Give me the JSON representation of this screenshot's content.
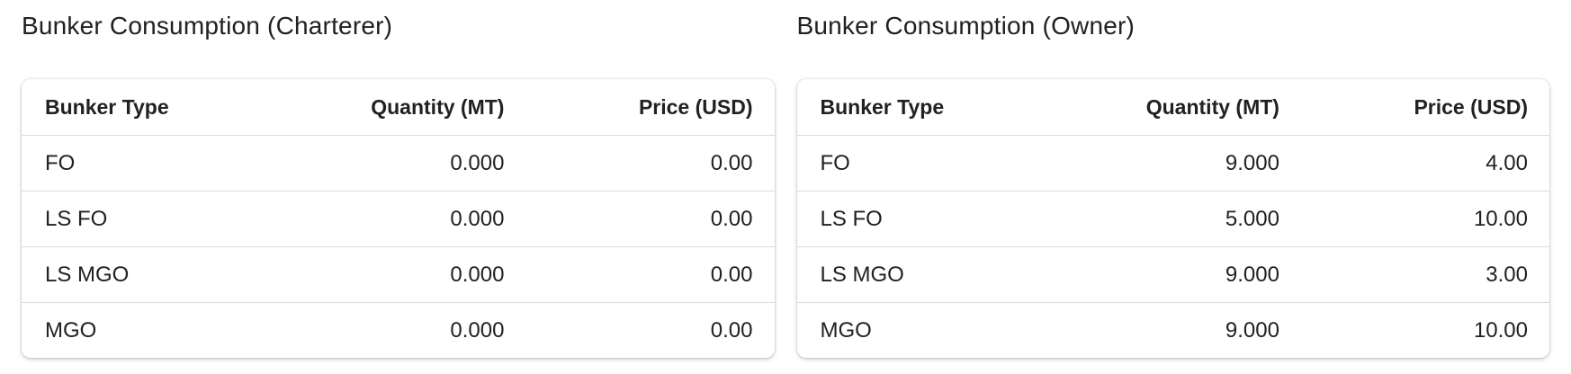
{
  "colors": {
    "page_background": "#ffffff",
    "card_background": "#ffffff",
    "text": "#212121",
    "divider": "#dbdbdb"
  },
  "panels": [
    {
      "title": "Bunker Consumption (Charterer)",
      "columns": [
        "Bunker Type",
        "Quantity (MT)",
        "Price (USD)"
      ],
      "rows": [
        {
          "type": "FO",
          "quantity": "0.000",
          "price": "0.00"
        },
        {
          "type": "LS FO",
          "quantity": "0.000",
          "price": "0.00"
        },
        {
          "type": "LS MGO",
          "quantity": "0.000",
          "price": "0.00"
        },
        {
          "type": "MGO",
          "quantity": "0.000",
          "price": "0.00"
        }
      ]
    },
    {
      "title": "Bunker Consumption (Owner)",
      "columns": [
        "Bunker Type",
        "Quantity (MT)",
        "Price (USD)"
      ],
      "rows": [
        {
          "type": "FO",
          "quantity": "9.000",
          "price": "4.00"
        },
        {
          "type": "LS FO",
          "quantity": "5.000",
          "price": "10.00"
        },
        {
          "type": "LS MGO",
          "quantity": "9.000",
          "price": "3.00"
        },
        {
          "type": "MGO",
          "quantity": "9.000",
          "price": "10.00"
        }
      ]
    }
  ]
}
